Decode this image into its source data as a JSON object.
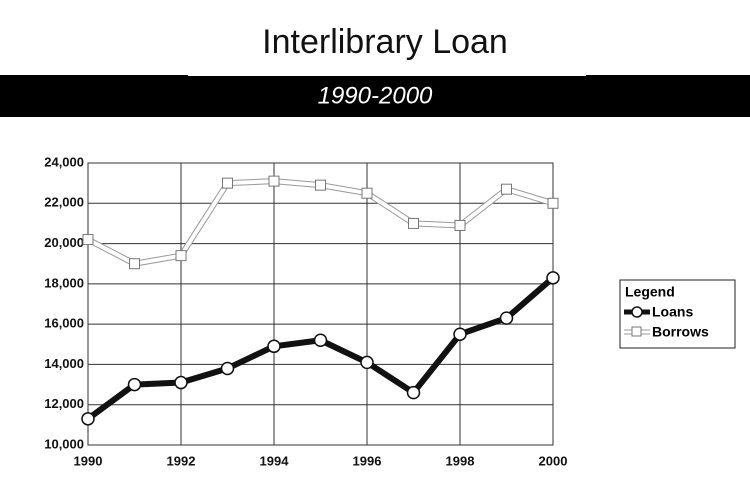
{
  "chart_data": {
    "type": "line",
    "title": "Interlibrary Loan",
    "subtitle": "1990-2000",
    "x": [
      1990,
      1991,
      1992,
      1993,
      1994,
      1995,
      1996,
      1997,
      1998,
      1999,
      2000
    ],
    "series": [
      {
        "name": "Loans",
        "color": "#111111",
        "values": [
          11300,
          13000,
          13100,
          13800,
          14900,
          15200,
          14100,
          12600,
          15500,
          16300,
          18300
        ]
      },
      {
        "name": "Borrows",
        "color": "#ffffff",
        "values": [
          20200,
          19000,
          19400,
          23000,
          23100,
          22900,
          22500,
          21000,
          20900,
          22700,
          22000
        ]
      }
    ],
    "xlim": [
      1990,
      2000
    ],
    "xticks": [
      1990,
      1992,
      1994,
      1996,
      1998,
      2000
    ],
    "ylim": [
      10000,
      24000
    ],
    "yticks": [
      {
        "value": 10000,
        "label": "10,000"
      },
      {
        "value": 12000,
        "label": "12,000"
      },
      {
        "value": 14000,
        "label": "14,000"
      },
      {
        "value": 16000,
        "label": "16,000"
      },
      {
        "value": 18000,
        "label": "18,000"
      },
      {
        "value": 20000,
        "label": "20,000"
      },
      {
        "value": 22000,
        "label": "22,000"
      },
      {
        "value": 24000,
        "label": "24,000"
      }
    ],
    "grid": true,
    "legend_title": "Legend",
    "legend": "right"
  }
}
